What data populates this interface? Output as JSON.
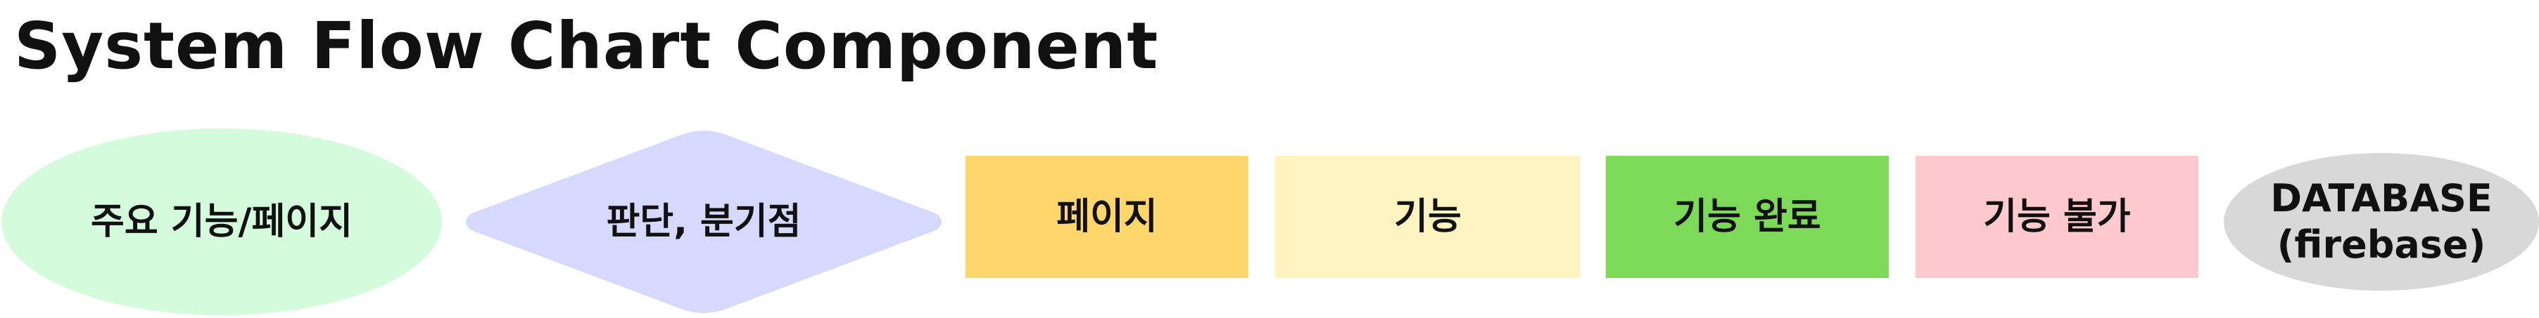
{
  "title": "System Flow Chart Component",
  "legend": [
    {
      "kind": "ellipse",
      "label": "주요 기능/페이지",
      "color": "#d4fbdb"
    },
    {
      "kind": "diamond",
      "label": "판단, 분기점",
      "color": "#d7d8fd"
    },
    {
      "kind": "rect",
      "label": "페이지",
      "color": "#ffd66b"
    },
    {
      "kind": "rect",
      "label": "기능",
      "color": "#fef4c0"
    },
    {
      "kind": "rect",
      "label": "기능 완료",
      "color": "#7dda58"
    },
    {
      "kind": "rect",
      "label": "기능 불가",
      "color": "#ffc9cd"
    },
    {
      "kind": "ellipse",
      "label_line1": "DATABASE",
      "label_line2": "(firebase)",
      "color": "#d8d8d8"
    }
  ]
}
